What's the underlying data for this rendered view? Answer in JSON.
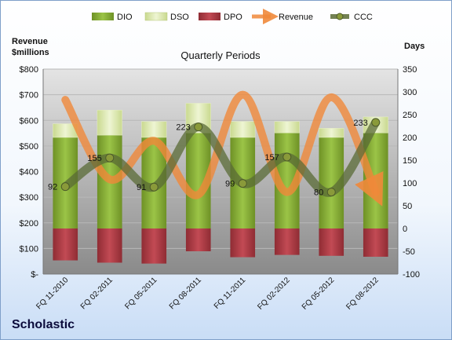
{
  "company": "Scholastic",
  "chart_data": {
    "type": "bar",
    "title": "Quarterly Periods",
    "y_left_label_line1": "Revenue",
    "y_left_label_line2": "$millions",
    "y_right_label": "Days",
    "categories": [
      "FQ 11-2010",
      "FQ 02-2011",
      "FQ 05-2011",
      "FQ 08-2011",
      "FQ 11-2011",
      "FQ 02-2012",
      "FQ 05-2012",
      "FQ 08-2012"
    ],
    "left_axis": {
      "ylim": [
        0,
        800
      ],
      "ticks": [
        0,
        100,
        200,
        300,
        400,
        500,
        600,
        700,
        800
      ],
      "tick_labels": [
        "$-",
        "$100",
        "$200",
        "$300",
        "$400",
        "$500",
        "$600",
        "$700",
        "$800"
      ]
    },
    "right_axis": {
      "ylim": [
        -100,
        350
      ],
      "ticks": [
        -100,
        -50,
        0,
        50,
        100,
        150,
        200,
        250,
        300,
        350
      ],
      "tick_labels": [
        "-100",
        "-50",
        "0",
        "50",
        "100",
        "150",
        "200",
        "250",
        "300",
        "350"
      ]
    },
    "legend_position": "top",
    "series": [
      {
        "name": "DIO",
        "axis": "right",
        "kind": "stacked-bar",
        "color": "#8db33a",
        "values": [
          200,
          205,
          200,
          210,
          200,
          210,
          200,
          210
        ]
      },
      {
        "name": "DSO",
        "axis": "right",
        "kind": "stacked-bar",
        "color": "#dde9b6",
        "values": [
          30,
          55,
          35,
          65,
          35,
          25,
          20,
          35
        ]
      },
      {
        "name": "DPO",
        "axis": "right",
        "kind": "negative-bar",
        "color": "#b8404a",
        "values": [
          -70,
          -75,
          -77,
          -50,
          -63,
          -58,
          -60,
          -62
        ]
      },
      {
        "name": "Revenue",
        "axis": "left",
        "kind": "line",
        "color": "#f0883a",
        "values": [
          680,
          370,
          520,
          310,
          700,
          320,
          690,
          320
        ]
      },
      {
        "name": "CCC",
        "axis": "right",
        "kind": "line",
        "color": "#5a6b35",
        "values": [
          92,
          155,
          91,
          223,
          99,
          157,
          80,
          233
        ],
        "labels": [
          "92",
          "155",
          "91",
          "223",
          "99",
          "157",
          "80",
          "233"
        ]
      }
    ]
  }
}
